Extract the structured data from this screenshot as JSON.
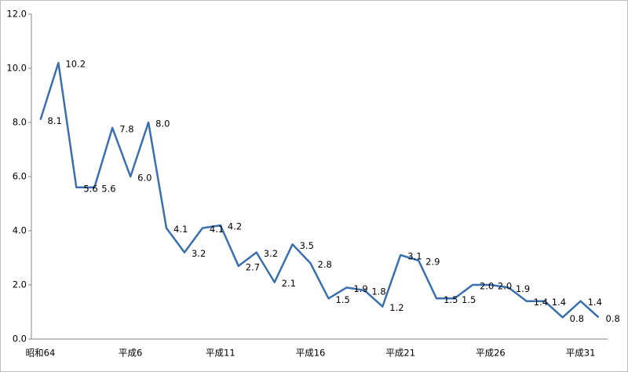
{
  "chart_data": {
    "type": "line",
    "categories": [
      "昭和64",
      null,
      null,
      null,
      null,
      "平成6",
      null,
      null,
      null,
      null,
      "平成11",
      null,
      null,
      null,
      null,
      "平成16",
      null,
      null,
      null,
      null,
      "平成21",
      null,
      null,
      null,
      null,
      "平成26",
      null,
      null,
      null,
      null,
      "平成31",
      null
    ],
    "series": [
      {
        "name": null,
        "color": "#3a6fb0",
        "values": [
          8.1,
          10.2,
          5.6,
          5.6,
          7.8,
          6.0,
          8.0,
          4.1,
          3.2,
          4.1,
          4.2,
          2.7,
          3.2,
          2.1,
          3.5,
          2.8,
          1.5,
          1.9,
          1.8,
          1.2,
          3.1,
          2.9,
          1.5,
          1.5,
          2.0,
          2.0,
          1.9,
          1.4,
          1.4,
          0.8,
          1.4,
          0.8
        ],
        "value_labels": [
          "8.1",
          "10.2",
          "5.6",
          "5.6",
          "7.8",
          "6.0",
          "8.0",
          "4.1",
          "3.2",
          "4.1",
          "4.2",
          "2.7",
          "3.2",
          "2.1",
          "3.5",
          "2.8",
          "1.5",
          "1.9",
          "1.8",
          "1.2",
          "3.1",
          "2.9",
          "1.5",
          "1.5",
          "2.0",
          "2.0",
          "1.9",
          "1.4",
          "1.4",
          "0.8",
          "1.4",
          "0.8"
        ]
      }
    ],
    "ylim": [
      0,
      12
    ],
    "yticks": [
      {
        "value": 0,
        "label": "0.0"
      },
      {
        "value": 2,
        "label": "2.0"
      },
      {
        "value": 4,
        "label": "4.0"
      },
      {
        "value": 6,
        "label": "6.0"
      },
      {
        "value": 8,
        "label": "8.0"
      },
      {
        "value": 10,
        "label": "10.0"
      },
      {
        "value": 12,
        "label": "12.0"
      }
    ],
    "grid": false
  }
}
